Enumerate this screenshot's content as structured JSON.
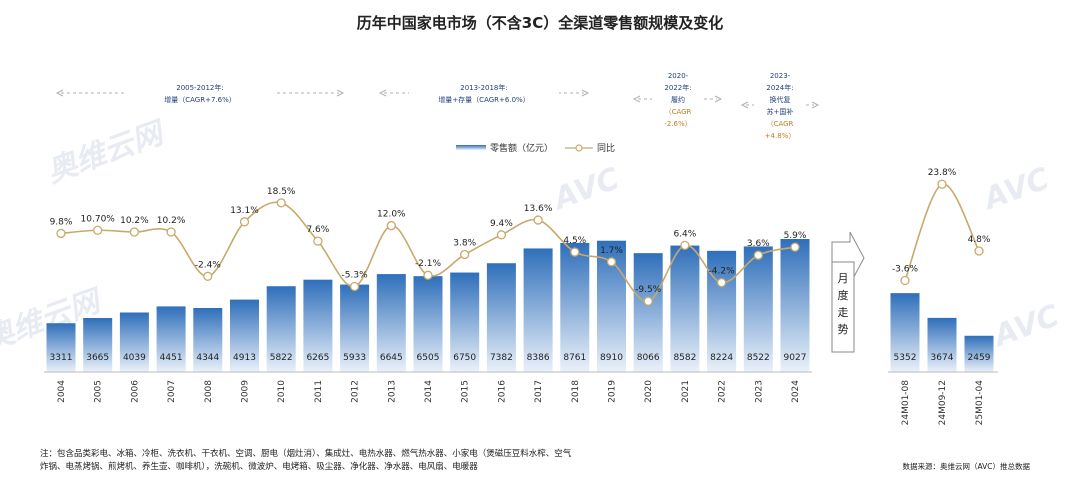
{
  "chart_data": {
    "type": "bar",
    "title": "历年中国家电市场（不含3C）全渠道零售额规模及变化",
    "legend": {
      "bar": "零售额（亿元）",
      "line": "同比"
    },
    "categories": [
      "2004",
      "2005",
      "2006",
      "2007",
      "2008",
      "2009",
      "2010",
      "2011",
      "2012",
      "2013",
      "2014",
      "2015",
      "2016",
      "2017",
      "2018",
      "2019",
      "2020",
      "2021",
      "2022",
      "2023",
      "2024"
    ],
    "values": [
      3311,
      3665,
      4039,
      4451,
      4344,
      4913,
      5822,
      6265,
      5933,
      6645,
      6505,
      6750,
      7382,
      8386,
      8761,
      8910,
      8066,
      8582,
      8224,
      8522,
      9027
    ],
    "yoy": [
      9.8,
      10.7,
      10.2,
      10.2,
      -2.4,
      13.1,
      18.5,
      7.6,
      -5.3,
      12.0,
      -2.1,
      3.8,
      9.4,
      13.6,
      4.5,
      1.7,
      -9.5,
      6.4,
      -4.2,
      3.6,
      5.9
    ],
    "yoy_labels": [
      "9.8%",
      "10.70%",
      "10.2%",
      "10.2%",
      "-2.4%",
      "13.1%",
      "18.5%",
      "7.6%",
      "-5.3%",
      "12.0%",
      "-2.1%",
      "3.8%",
      "9.4%",
      "13.6%",
      "4.5%",
      "1.7%",
      "-9.5%",
      "6.4%",
      "-4.2%",
      "3.6%",
      "5.9%"
    ],
    "monthly": {
      "label": "月度走势",
      "categories": [
        "24M01-08",
        "24M09-12",
        "25M01-04"
      ],
      "values": [
        5352,
        3674,
        2459
      ],
      "yoy": [
        -3.6,
        23.8,
        4.8
      ],
      "yoy_labels": [
        "-3.6%",
        "23.8%",
        "4.8%"
      ]
    },
    "phases": [
      {
        "line1": "2005-2012年:",
        "line2": "增量（CAGR+7.6%）"
      },
      {
        "line1": "2013-2018年:",
        "line2": "增量+存量（CAGR+6.0%）"
      },
      {
        "line1": "2020-",
        "line2": "2022年:",
        "line3": "履约",
        "line4": "（CAGR",
        "line5": "-2.6%）"
      },
      {
        "line1": "2023-",
        "line2": "2024年:",
        "line3": "换代复",
        "line4": "苏+国补",
        "line5": "（CAGR",
        "line6": "+4.8%）"
      }
    ],
    "ylim": [
      0,
      10000
    ],
    "yoy_range": [
      -10,
      25
    ]
  },
  "watermark": "AVC",
  "watermark_cn": "奥维云网",
  "note_line1": "注：包含品类彩电、冰箱、冷柜、洗衣机、干衣机、空调、厨电（烟灶消）、集成灶、电热水器、燃气热水器、小家电（煲磁压豆料水榨、空气",
  "note_line2": "炸锅、电蒸烤锅、煎烤机、养生壶、咖啡机），洗碗机、微波炉、电烤箱、吸尘器、净化器、净水器、电风扇、电暖器",
  "source": "数据来源：奥维云网（AVC）推总数据",
  "colors": {
    "bar_top": "#2f6fba",
    "bar_bottom": "#e9f0f9",
    "line": "#c9a96b",
    "marker": "#ffffff",
    "arrow": "#a8a8a8"
  }
}
